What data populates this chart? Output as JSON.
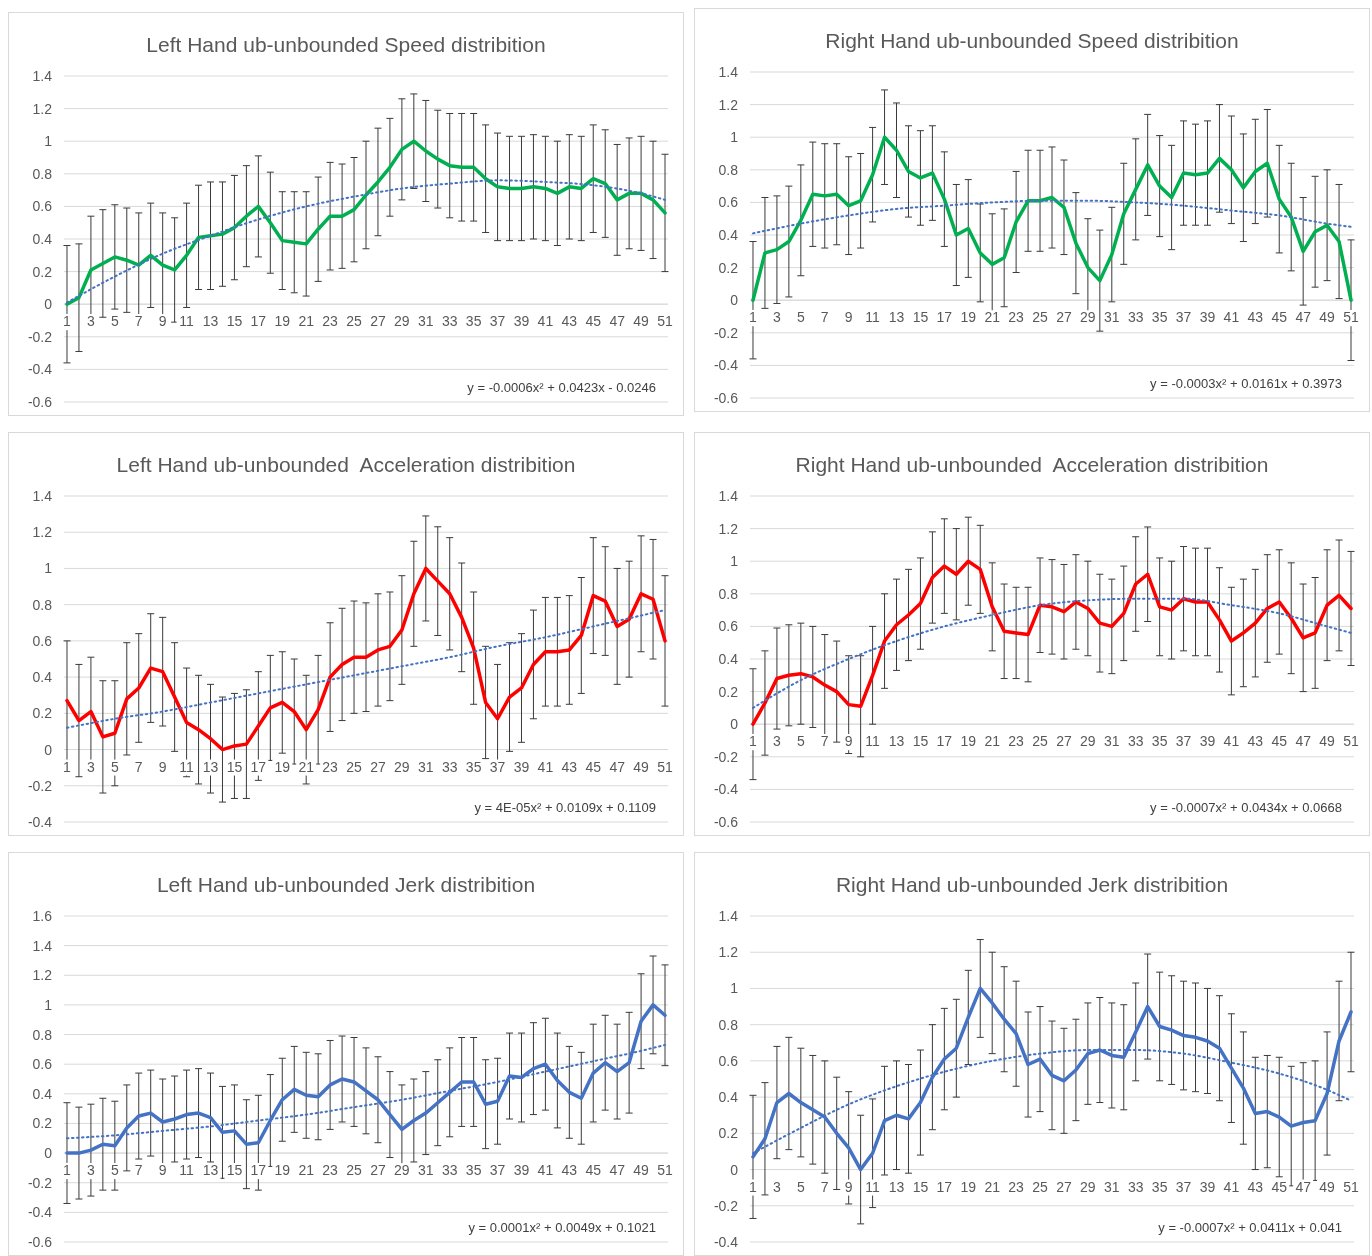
{
  "chart_data": [
    {
      "type": "line",
      "title": "Left Hand ub-unbounded Speed distribition",
      "x": [
        1,
        2,
        3,
        4,
        5,
        6,
        7,
        8,
        9,
        10,
        11,
        12,
        13,
        14,
        15,
        16,
        17,
        18,
        19,
        20,
        21,
        22,
        23,
        24,
        25,
        26,
        27,
        28,
        29,
        30,
        31,
        32,
        33,
        34,
        35,
        36,
        37,
        38,
        39,
        40,
        41,
        42,
        43,
        44,
        45,
        46,
        47,
        48,
        49,
        50,
        51
      ],
      "xlim": [
        0.75,
        51.25
      ],
      "xticks": [
        1,
        3,
        5,
        7,
        9,
        11,
        13,
        15,
        17,
        19,
        21,
        23,
        25,
        27,
        29,
        31,
        33,
        35,
        37,
        39,
        41,
        43,
        45,
        47,
        49,
        51
      ],
      "ylim": [
        -0.6,
        1.4
      ],
      "yticks": [
        -0.6,
        -0.4,
        -0.2,
        0,
        0.2,
        0.4,
        0.6,
        0.8,
        1,
        1.2,
        1.4
      ],
      "grid": "y",
      "annotations": [
        "y = -0.0006x² + 0.0423x - 0.0246"
      ],
      "series": [
        {
          "type": "line",
          "color": "#00b050",
          "values": [
            0,
            0.04,
            0.21,
            0.25,
            0.29,
            0.27,
            0.24,
            0.3,
            0.24,
            0.21,
            0.3,
            0.41,
            0.42,
            0.43,
            0.47,
            0.54,
            0.6,
            0.5,
            0.39,
            0.38,
            0.37,
            0.46,
            0.54,
            0.54,
            0.58,
            0.67,
            0.75,
            0.84,
            0.95,
            1,
            0.94,
            0.89,
            0.85,
            0.84,
            0.84,
            0.77,
            0.72,
            0.71,
            0.71,
            0.72,
            0.71,
            0.68,
            0.72,
            0.71,
            0.77,
            0.74,
            0.64,
            0.68,
            0.68,
            0.64,
            0.56
          ],
          "errors": [
            0.36,
            0.33,
            0.33,
            0.33,
            0.32,
            0.32,
            0.32,
            0.32,
            0.32,
            0.32,
            0.32,
            0.32,
            0.33,
            0.32,
            0.32,
            0.31,
            0.31,
            0.31,
            0.3,
            0.31,
            0.32,
            0.32,
            0.33,
            0.32,
            0.32,
            0.33,
            0.33,
            0.3,
            0.31,
            0.29,
            0.31,
            0.3,
            0.32,
            0.33,
            0.33,
            0.33,
            0.33,
            0.32,
            0.32,
            0.32,
            0.32,
            0.32,
            0.32,
            0.32,
            0.33,
            0.33,
            0.34,
            0.34,
            0.35,
            0.36,
            0.36
          ]
        },
        {
          "type": "line",
          "color": "#4472c4",
          "line_style": "dotted",
          "x": [
            1,
            5,
            9,
            13,
            17,
            21,
            25,
            29,
            33,
            37,
            41,
            45,
            49,
            51
          ],
          "values": [
            0.01,
            0.17,
            0.31,
            0.42,
            0.52,
            0.6,
            0.66,
            0.71,
            0.74,
            0.76,
            0.75,
            0.73,
            0.68,
            0.64
          ]
        }
      ]
    },
    {
      "type": "line",
      "title": "Right Hand ub-unbounded Speed distribition",
      "x": [
        1,
        2,
        3,
        4,
        5,
        6,
        7,
        8,
        9,
        10,
        11,
        12,
        13,
        14,
        15,
        16,
        17,
        18,
        19,
        20,
        21,
        22,
        23,
        24,
        25,
        26,
        27,
        28,
        29,
        30,
        31,
        32,
        33,
        34,
        35,
        36,
        37,
        38,
        39,
        40,
        41,
        42,
        43,
        44,
        45,
        46,
        47,
        48,
        49,
        50,
        51
      ],
      "xlim": [
        0.75,
        51.25
      ],
      "xticks": [
        1,
        3,
        5,
        7,
        9,
        11,
        13,
        15,
        17,
        19,
        21,
        23,
        25,
        27,
        29,
        31,
        33,
        35,
        37,
        39,
        41,
        43,
        45,
        47,
        49,
        51
      ],
      "ylim": [
        -0.6,
        1.4
      ],
      "yticks": [
        -0.6,
        -0.4,
        -0.2,
        0,
        0.2,
        0.4,
        0.6,
        0.8,
        1,
        1.2,
        1.4
      ],
      "grid": "y",
      "annotations": [
        "y = -0.0003x² + 0.0161x + 0.3973"
      ],
      "series": [
        {
          "type": "line",
          "color": "#00b050",
          "values": [
            0,
            0.29,
            0.31,
            0.36,
            0.49,
            0.65,
            0.64,
            0.65,
            0.58,
            0.61,
            0.77,
            1,
            0.92,
            0.79,
            0.75,
            0.78,
            0.62,
            0.4,
            0.44,
            0.29,
            0.22,
            0.26,
            0.48,
            0.61,
            0.61,
            0.63,
            0.57,
            0.35,
            0.2,
            0.12,
            0.28,
            0.53,
            0.68,
            0.83,
            0.7,
            0.63,
            0.78,
            0.77,
            0.78,
            0.87,
            0.8,
            0.69,
            0.79,
            0.84,
            0.62,
            0.51,
            0.3,
            0.42,
            0.46,
            0.36,
            0
          ],
          "errors": [
            0.36,
            0.34,
            0.33,
            0.34,
            0.34,
            0.32,
            0.32,
            0.31,
            0.3,
            0.29,
            0.29,
            0.29,
            0.29,
            0.28,
            0.29,
            0.29,
            0.29,
            0.31,
            0.3,
            0.3,
            0.31,
            0.3,
            0.31,
            0.31,
            0.31,
            0.31,
            0.29,
            0.31,
            0.3,
            0.31,
            0.29,
            0.31,
            0.31,
            0.31,
            0.31,
            0.32,
            0.32,
            0.31,
            0.32,
            0.33,
            0.33,
            0.33,
            0.32,
            0.33,
            0.33,
            0.33,
            0.33,
            0.34,
            0.34,
            0.35,
            0.37
          ]
        },
        {
          "type": "line",
          "color": "#4472c4",
          "line_style": "dotted",
          "x": [
            1,
            5,
            9,
            13,
            17,
            21,
            25,
            29,
            33,
            37,
            41,
            45,
            49,
            51
          ],
          "values": [
            0.41,
            0.47,
            0.52,
            0.56,
            0.58,
            0.6,
            0.61,
            0.61,
            0.6,
            0.58,
            0.55,
            0.52,
            0.47,
            0.45
          ]
        }
      ]
    },
    {
      "type": "line",
      "title": "Left Hand ub-unbounded  Acceleration distribition",
      "x": [
        1,
        2,
        3,
        4,
        5,
        6,
        7,
        8,
        9,
        10,
        11,
        12,
        13,
        14,
        15,
        16,
        17,
        18,
        19,
        20,
        21,
        22,
        23,
        24,
        25,
        26,
        27,
        28,
        29,
        30,
        31,
        32,
        33,
        34,
        35,
        36,
        37,
        38,
        39,
        40,
        41,
        42,
        43,
        44,
        45,
        46,
        47,
        48,
        49,
        50,
        51
      ],
      "xlim": [
        0.75,
        51.25
      ],
      "xticks": [
        1,
        3,
        5,
        7,
        9,
        11,
        13,
        15,
        17,
        19,
        21,
        23,
        25,
        27,
        29,
        31,
        33,
        35,
        37,
        39,
        41,
        43,
        45,
        47,
        49,
        51
      ],
      "ylim": [
        -0.4,
        1.4
      ],
      "yticks": [
        -0.4,
        -0.2,
        0,
        0.2,
        0.4,
        0.6,
        0.8,
        1,
        1.2,
        1.4
      ],
      "grid": "y",
      "annotations": [
        "y = 4E-05x² + 0.0109x + 0.1109"
      ],
      "series": [
        {
          "type": "line",
          "color": "#ff0000",
          "values": [
            0.27,
            0.16,
            0.21,
            0.07,
            0.09,
            0.28,
            0.34,
            0.45,
            0.43,
            0.29,
            0.15,
            0.11,
            0.06,
            0,
            0.02,
            0.03,
            0.13,
            0.23,
            0.26,
            0.21,
            0.11,
            0.22,
            0.4,
            0.47,
            0.51,
            0.51,
            0.55,
            0.57,
            0.66,
            0.86,
            1,
            0.93,
            0.86,
            0.73,
            0.56,
            0.26,
            0.17,
            0.29,
            0.34,
            0.47,
            0.54,
            0.54,
            0.55,
            0.63,
            0.85,
            0.82,
            0.68,
            0.72,
            0.86,
            0.83,
            0.6
          ],
          "errors": [
            0.33,
            0.31,
            0.3,
            0.31,
            0.29,
            0.31,
            0.3,
            0.3,
            0.3,
            0.3,
            0.3,
            0.3,
            0.3,
            0.29,
            0.29,
            0.3,
            0.3,
            0.29,
            0.28,
            0.29,
            0.3,
            0.3,
            0.3,
            0.31,
            0.31,
            0.3,
            0.31,
            0.3,
            0.3,
            0.29,
            0.29,
            0.3,
            0.31,
            0.3,
            0.31,
            0.31,
            0.3,
            0.3,
            0.3,
            0.3,
            0.3,
            0.3,
            0.3,
            0.32,
            0.32,
            0.3,
            0.32,
            0.32,
            0.32,
            0.33,
            0.36
          ]
        },
        {
          "type": "line",
          "color": "#4472c4",
          "line_style": "dotted",
          "x": [
            1,
            5,
            9,
            13,
            17,
            21,
            25,
            29,
            33,
            37,
            41,
            45,
            49,
            51
          ],
          "values": [
            0.12,
            0.17,
            0.21,
            0.26,
            0.31,
            0.36,
            0.41,
            0.46,
            0.51,
            0.57,
            0.62,
            0.68,
            0.74,
            0.77
          ]
        }
      ]
    },
    {
      "type": "line",
      "title": "Right Hand ub-unbounded  Acceleration distribition",
      "x": [
        1,
        2,
        3,
        4,
        5,
        6,
        7,
        8,
        9,
        10,
        11,
        12,
        13,
        14,
        15,
        16,
        17,
        18,
        19,
        20,
        21,
        22,
        23,
        24,
        25,
        26,
        27,
        28,
        29,
        30,
        31,
        32,
        33,
        34,
        35,
        36,
        37,
        38,
        39,
        40,
        41,
        42,
        43,
        44,
        45,
        46,
        47,
        48,
        49,
        50,
        51
      ],
      "xlim": [
        0.75,
        51.25
      ],
      "xticks": [
        1,
        3,
        5,
        7,
        9,
        11,
        13,
        15,
        17,
        19,
        21,
        23,
        25,
        27,
        29,
        31,
        33,
        35,
        37,
        39,
        41,
        43,
        45,
        47,
        49,
        51
      ],
      "ylim": [
        -0.6,
        1.4
      ],
      "yticks": [
        -0.6,
        -0.4,
        -0.2,
        0,
        0.2,
        0.4,
        0.6,
        0.8,
        1,
        1.2,
        1.4
      ],
      "grid": "y",
      "annotations": [
        "y = -0.0007x² + 0.0434x + 0.0668"
      ],
      "series": [
        {
          "type": "line",
          "color": "#ff0000",
          "values": [
            0,
            0.13,
            0.28,
            0.3,
            0.31,
            0.29,
            0.24,
            0.2,
            0.12,
            0.11,
            0.3,
            0.51,
            0.61,
            0.67,
            0.74,
            0.9,
            0.97,
            0.92,
            1,
            0.95,
            0.72,
            0.57,
            0.56,
            0.55,
            0.73,
            0.72,
            0.69,
            0.75,
            0.71,
            0.62,
            0.6,
            0.68,
            0.86,
            0.92,
            0.72,
            0.7,
            0.77,
            0.75,
            0.75,
            0.64,
            0.51,
            0.56,
            0.62,
            0.71,
            0.75,
            0.65,
            0.53,
            0.56,
            0.73,
            0.79,
            0.71
          ],
          "errors": [
            0.34,
            0.32,
            0.31,
            0.31,
            0.31,
            0.31,
            0.31,
            0.31,
            0.3,
            0.31,
            0.3,
            0.29,
            0.28,
            0.28,
            0.28,
            0.28,
            0.29,
            0.28,
            0.27,
            0.27,
            0.27,
            0.29,
            0.28,
            0.29,
            0.29,
            0.29,
            0.29,
            0.29,
            0.29,
            0.3,
            0.29,
            0.29,
            0.29,
            0.29,
            0.3,
            0.3,
            0.32,
            0.33,
            0.33,
            0.32,
            0.33,
            0.33,
            0.33,
            0.33,
            0.32,
            0.34,
            0.33,
            0.34,
            0.34,
            0.34,
            0.35
          ]
        },
        {
          "type": "line",
          "color": "#4472c4",
          "line_style": "dotted",
          "x": [
            1,
            5,
            9,
            13,
            17,
            21,
            25,
            29,
            33,
            37,
            41,
            45,
            49,
            51
          ],
          "values": [
            0.1,
            0.27,
            0.4,
            0.51,
            0.6,
            0.67,
            0.73,
            0.76,
            0.77,
            0.77,
            0.73,
            0.68,
            0.6,
            0.56
          ]
        }
      ]
    },
    {
      "type": "line",
      "title": "Left Hand ub-unbounded Jerk distribition",
      "x": [
        1,
        2,
        3,
        4,
        5,
        6,
        7,
        8,
        9,
        10,
        11,
        12,
        13,
        14,
        15,
        16,
        17,
        18,
        19,
        20,
        21,
        22,
        23,
        24,
        25,
        26,
        27,
        28,
        29,
        30,
        31,
        32,
        33,
        34,
        35,
        36,
        37,
        38,
        39,
        40,
        41,
        42,
        43,
        44,
        45,
        46,
        47,
        48,
        49,
        50,
        51
      ],
      "xlim": [
        0.75,
        51.25
      ],
      "xticks": [
        1,
        3,
        5,
        7,
        9,
        11,
        13,
        15,
        17,
        19,
        21,
        23,
        25,
        27,
        29,
        31,
        33,
        35,
        37,
        39,
        41,
        43,
        45,
        47,
        49,
        51
      ],
      "ylim": [
        -0.6,
        1.6
      ],
      "yticks": [
        -0.6,
        -0.4,
        -0.2,
        0,
        0.2,
        0.4,
        0.6,
        0.8,
        1,
        1.2,
        1.4,
        1.6
      ],
      "grid": "y",
      "annotations": [
        "y = 0.0001x² + 0.0049x + 0.1021"
      ],
      "series": [
        {
          "type": "line",
          "color": "#4472c4",
          "values": [
            0,
            0,
            0.02,
            0.06,
            0.05,
            0.17,
            0.25,
            0.27,
            0.21,
            0.23,
            0.26,
            0.27,
            0.24,
            0.14,
            0.15,
            0.06,
            0.07,
            0.22,
            0.36,
            0.43,
            0.39,
            0.38,
            0.46,
            0.5,
            0.48,
            0.42,
            0.36,
            0.26,
            0.16,
            0.22,
            0.27,
            0.34,
            0.41,
            0.48,
            0.48,
            0.33,
            0.35,
            0.52,
            0.51,
            0.57,
            0.6,
            0.49,
            0.41,
            0.37,
            0.54,
            0.61,
            0.55,
            0.61,
            0.89,
            1,
            0.93
          ],
          "errors": [
            0.34,
            0.31,
            0.31,
            0.31,
            0.3,
            0.29,
            0.29,
            0.29,
            0.29,
            0.29,
            0.3,
            0.3,
            0.3,
            0.31,
            0.31,
            0.3,
            0.32,
            0.31,
            0.28,
            0.29,
            0.29,
            0.29,
            0.3,
            0.29,
            0.3,
            0.29,
            0.29,
            0.29,
            0.3,
            0.28,
            0.28,
            0.29,
            0.3,
            0.3,
            0.3,
            0.3,
            0.29,
            0.29,
            0.3,
            0.31,
            0.31,
            0.32,
            0.31,
            0.31,
            0.33,
            0.32,
            0.32,
            0.34,
            0.32,
            0.33,
            0.34
          ]
        },
        {
          "type": "line",
          "color": "#4472c4",
          "line_style": "dotted",
          "x": [
            1,
            5,
            9,
            13,
            17,
            21,
            25,
            29,
            33,
            37,
            41,
            45,
            49,
            51
          ],
          "values": [
            0.1,
            0.12,
            0.15,
            0.18,
            0.22,
            0.26,
            0.31,
            0.36,
            0.42,
            0.48,
            0.55,
            0.62,
            0.69,
            0.73
          ]
        }
      ]
    },
    {
      "type": "line",
      "title": "Right Hand ub-unbounded Jerk distribition",
      "x": [
        1,
        2,
        3,
        4,
        5,
        6,
        7,
        8,
        9,
        10,
        11,
        12,
        13,
        14,
        15,
        16,
        17,
        18,
        19,
        20,
        21,
        22,
        23,
        24,
        25,
        26,
        27,
        28,
        29,
        30,
        31,
        32,
        33,
        34,
        35,
        36,
        37,
        38,
        39,
        40,
        41,
        42,
        43,
        44,
        45,
        46,
        47,
        48,
        49,
        50,
        51
      ],
      "xlim": [
        0.75,
        51.25
      ],
      "xticks": [
        1,
        3,
        5,
        7,
        9,
        11,
        13,
        15,
        17,
        19,
        21,
        23,
        25,
        27,
        29,
        31,
        33,
        35,
        37,
        39,
        41,
        43,
        45,
        47,
        49,
        51
      ],
      "ylim": [
        -0.4,
        1.4
      ],
      "yticks": [
        -0.4,
        -0.2,
        0,
        0.2,
        0.4,
        0.6,
        0.8,
        1,
        1.2,
        1.4
      ],
      "grid": "y",
      "annotations": [
        "y = -0.0007x² + 0.0411x + 0.041"
      ],
      "series": [
        {
          "type": "line",
          "color": "#4472c4",
          "values": [
            0.07,
            0.17,
            0.37,
            0.42,
            0.37,
            0.33,
            0.29,
            0.2,
            0.12,
            0,
            0.09,
            0.27,
            0.3,
            0.28,
            0.37,
            0.51,
            0.61,
            0.67,
            0.84,
            1,
            0.92,
            0.83,
            0.75,
            0.58,
            0.61,
            0.52,
            0.49,
            0.55,
            0.64,
            0.66,
            0.63,
            0.62,
            0.76,
            0.9,
            0.79,
            0.77,
            0.74,
            0.73,
            0.71,
            0.67,
            0.56,
            0.45,
            0.31,
            0.32,
            0.29,
            0.24,
            0.26,
            0.27,
            0.42,
            0.71,
            0.87
          ],
          "errors": [
            0.34,
            0.31,
            0.31,
            0.31,
            0.3,
            0.3,
            0.31,
            0.31,
            0.31,
            0.3,
            0.3,
            0.3,
            0.3,
            0.3,
            0.29,
            0.29,
            0.28,
            0.27,
            0.26,
            0.27,
            0.28,
            0.29,
            0.29,
            0.29,
            0.29,
            0.3,
            0.29,
            0.28,
            0.28,
            0.29,
            0.29,
            0.29,
            0.27,
            0.29,
            0.3,
            0.3,
            0.3,
            0.3,
            0.29,
            0.29,
            0.3,
            0.31,
            0.31,
            0.31,
            0.33,
            0.33,
            0.33,
            0.33,
            0.34,
            0.33,
            0.33
          ]
        },
        {
          "type": "line",
          "color": "#4472c4",
          "line_style": "dotted",
          "x": [
            1,
            5,
            9,
            13,
            17,
            21,
            25,
            29,
            33,
            37,
            41,
            45,
            49,
            51
          ],
          "values": [
            0.09,
            0.23,
            0.36,
            0.46,
            0.54,
            0.6,
            0.64,
            0.66,
            0.66,
            0.64,
            0.59,
            0.53,
            0.44,
            0.38
          ]
        }
      ]
    }
  ]
}
